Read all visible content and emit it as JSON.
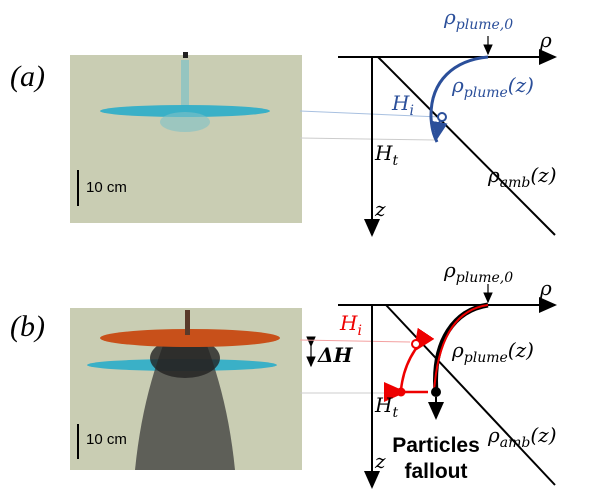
{
  "panels": [
    {
      "label": "(a)",
      "scale": "10 cm",
      "rho_axis": "ρ",
      "rho_plume0": {
        "symbol": "ρ",
        "sub": "plume,0"
      },
      "rho_plume": {
        "symbol": "ρ",
        "sub": "plume",
        "arg": "(z)"
      },
      "rho_amb": {
        "symbol": "ρ",
        "sub": "amb",
        "arg": "(z)"
      },
      "h_i": {
        "symbol": "H",
        "sub": "i"
      },
      "h_t": {
        "symbol": "H",
        "sub": "t"
      },
      "z": "z"
    },
    {
      "label": "(b)",
      "scale": "10 cm",
      "rho_axis": "ρ",
      "rho_plume0": {
        "symbol": "ρ",
        "sub": "plume,0"
      },
      "rho_plume": {
        "symbol": "ρ",
        "sub": "plume",
        "arg": "(z)"
      },
      "rho_amb": {
        "symbol": "ρ",
        "sub": "amb",
        "arg": "(z)"
      },
      "h_i": {
        "symbol": "H",
        "sub": "i"
      },
      "h_t": {
        "symbol": "H",
        "sub": "t"
      },
      "z": "z",
      "delta_h": "ΔH",
      "fallout": [
        "Particles",
        "fallout"
      ]
    }
  ]
}
